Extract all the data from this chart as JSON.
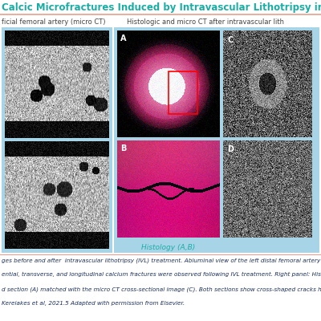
{
  "title_color": "#1AADA4",
  "title_fontsize": 8.5,
  "orange_line_color": "#E8A090",
  "subtitle_left": "ficial femoral artery (micro CT)",
  "subtitle_right": "Histologic and micro CT after intravascular lith",
  "subtitle_color": "#444444",
  "subtitle_fontsize": 6.0,
  "panel_bg": "#A8D4E8",
  "histology_label": "Histology (A,B)",
  "histology_label_color": "#1AADA4",
  "caption_lines": [
    "ges before and after  intravascular lithotripsy (IVL) treatment. Abluminal view of the left distal femoral artery demonstratio",
    "ential, transverse, and longitudinal calcium fractures were observed following IVL treatment. Right panel: Histological an",
    "d section (A) matched with the micro CT cross-sectional image (C). Both sections show cross-shaped cracks highlighted b",
    "Kereiakes et al, 2021.5 Adapted with permission from Elsevier."
  ],
  "caption_color": "#1A2E5A",
  "caption_fontsize": 5.2,
  "bg_color": "#FFFFFF",
  "red_box_color": "#FF0000",
  "label_color": "#FFFFFF",
  "title_text": "Calcic Microfractures Induced by Intravascular Lithotripsy in Micro CT and Histolo"
}
